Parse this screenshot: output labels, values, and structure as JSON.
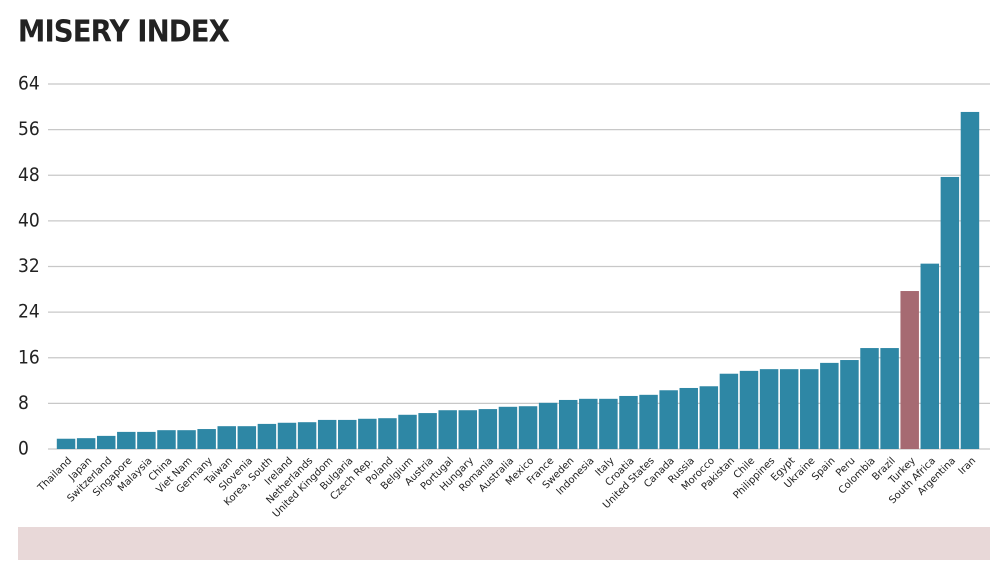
{
  "chart_data": {
    "type": "bar",
    "title": "MISERY INDEX",
    "categories": [
      "Thailand",
      "Japan",
      "Switzerland",
      "Singapore",
      "Malaysia",
      "China",
      "Viet Nam",
      "Germany",
      "Taiwan",
      "Slovenia",
      "Korea, South",
      "Ireland",
      "Netherlands",
      "United Kingdom",
      "Bulgaria",
      "Czech Rep.",
      "Poland",
      "Belgium",
      "Austria",
      "Portugal",
      "Hungary",
      "Romania",
      "Australia",
      "Mexico",
      "France",
      "Sweden",
      "Indonesia",
      "Italy",
      "Croatia",
      "United States",
      "Canada",
      "Russia",
      "Morocco",
      "Pakistan",
      "Chile",
      "Philippines",
      "Egypt",
      "Ukraine",
      "Spain",
      "Peru",
      "Colombia",
      "Brazil",
      "Turkey",
      "South Africa",
      "Argentina",
      "Iran"
    ],
    "values": [
      1.8,
      1.9,
      2.3,
      3.0,
      3.0,
      3.3,
      3.3,
      3.5,
      4.0,
      4.0,
      4.4,
      4.6,
      4.7,
      5.1,
      5.1,
      5.3,
      5.4,
      6.0,
      6.3,
      6.8,
      6.8,
      7.0,
      7.4,
      7.5,
      8.1,
      8.6,
      8.8,
      8.8,
      9.3,
      9.5,
      10.3,
      10.7,
      11.0,
      13.2,
      13.7,
      14.0,
      14.0,
      14.0,
      15.1,
      15.6,
      17.7,
      17.7,
      27.7,
      32.5,
      47.7,
      59.1
    ],
    "colors": [
      "#2e87a5",
      "#2e87a5",
      "#2e87a5",
      "#2e87a5",
      "#2e87a5",
      "#2e87a5",
      "#2e87a5",
      "#2e87a5",
      "#2e87a5",
      "#2e87a5",
      "#2e87a5",
      "#2e87a5",
      "#2e87a5",
      "#2e87a5",
      "#2e87a5",
      "#2e87a5",
      "#2e87a5",
      "#2e87a5",
      "#2e87a5",
      "#2e87a5",
      "#2e87a5",
      "#2e87a5",
      "#2e87a5",
      "#2e87a5",
      "#2e87a5",
      "#2e87a5",
      "#2e87a5",
      "#2e87a5",
      "#2e87a5",
      "#2e87a5",
      "#2e87a5",
      "#2e87a5",
      "#2e87a5",
      "#2e87a5",
      "#2e87a5",
      "#2e87a5",
      "#2e87a5",
      "#2e87a5",
      "#2e87a5",
      "#2e87a5",
      "#2e87a5",
      "#2e87a5",
      "#a66a72",
      "#2e87a5",
      "#2e87a5",
      "#2e87a5"
    ],
    "ylim": [
      0,
      64
    ],
    "yticks": [
      0,
      8,
      16,
      24,
      32,
      40,
      48,
      56,
      64
    ],
    "grid": true
  }
}
